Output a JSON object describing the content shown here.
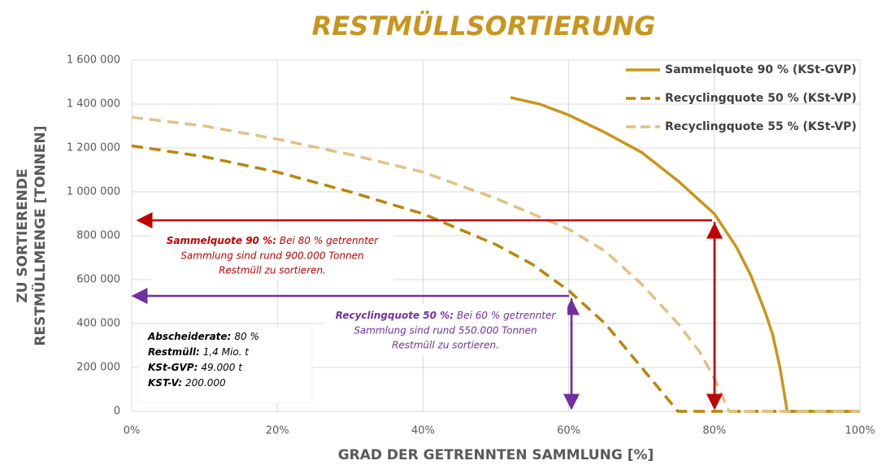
{
  "chart_data": {
    "type": "line",
    "title": "RESTMÜLLSORTIERUNG",
    "x_label": "GRAD DER GETRENNTEN SAMMLUNG [%]",
    "y_label": [
      "ZU SORTIERENDE",
      "RESTMÜLLMENGE [TONNEN]"
    ],
    "xlim": [
      0,
      100
    ],
    "ylim": [
      0,
      1600000
    ],
    "xticks": [
      {
        "value": 0,
        "label": "0%"
      },
      {
        "value": 20,
        "label": "20%"
      },
      {
        "value": 40,
        "label": "40%"
      },
      {
        "value": 60,
        "label": "60%"
      },
      {
        "value": 80,
        "label": "80%"
      },
      {
        "value": 100,
        "label": "100%"
      }
    ],
    "yticks": [
      0,
      {
        "value": 200000,
        "label": "200 000"
      },
      {
        "value": 400000,
        "label": "400 000"
      },
      {
        "value": 600000,
        "label": "600 000"
      },
      {
        "value": 800000,
        "label": "800 000"
      },
      {
        "value": 1000000,
        "label": "1 000 000"
      },
      {
        "value": 1200000,
        "label": "1 200 000"
      },
      {
        "value": 1400000,
        "label": "1 400 000"
      },
      {
        "value": 1600000,
        "label": "1 600 000"
      }
    ],
    "grid": true,
    "legend": "upper right",
    "series": [
      {
        "name": "Sammelquote 90 % (KSt-GVP)",
        "color": "#c9961a",
        "dash": "solid",
        "x": [
          52,
          56,
          60,
          65,
          70,
          75,
          80,
          83,
          85,
          87,
          88,
          89,
          90,
          95,
          100
        ],
        "values": [
          1430000,
          1400000,
          1350000,
          1270000,
          1180000,
          1050000,
          900000,
          750000,
          620000,
          450000,
          350000,
          200000,
          0,
          0,
          0
        ]
      },
      {
        "name": "Recyclingquote 50 % (KSt-VP)",
        "color": "#b8860b",
        "dash": "dashed",
        "x": [
          0,
          10,
          20,
          30,
          40,
          50,
          55,
          60,
          65,
          70,
          73,
          75,
          80,
          90,
          100
        ],
        "values": [
          1210000,
          1160000,
          1090000,
          1000000,
          900000,
          760000,
          670000,
          550000,
          400000,
          200000,
          80000,
          0,
          0,
          0,
          0
        ]
      },
      {
        "name": "Recyclingquote 55 % (KSt-VP)",
        "color": "#e0c185",
        "dash": "dashed",
        "x": [
          0,
          10,
          20,
          30,
          40,
          50,
          60,
          65,
          70,
          75,
          78,
          80,
          82,
          90,
          100
        ],
        "values": [
          1340000,
          1300000,
          1240000,
          1170000,
          1090000,
          970000,
          830000,
          730000,
          580000,
          400000,
          270000,
          150000,
          0,
          0,
          0
        ]
      }
    ],
    "annotations": [
      {
        "bold": "Sammelquote 90 %:",
        "lines": [
          "Bei 80 % getrennter",
          "Sammlung sind rund 900.000 Tonnen",
          "Restmüll zu sortieren."
        ]
      },
      {
        "bold": "Recyclingquote 50 %:",
        "lines": [
          "Bei 60 % getrennter",
          "Sammlung sind rund 550.000 Tonnen",
          "Restmüll zu sortieren."
        ]
      }
    ],
    "info": [
      {
        "key": "Abscheiderate:",
        "value": "80 %"
      },
      {
        "key": "Restmüll:",
        "value": "1,4 Mio. t"
      },
      {
        "key": "KSt-GVP:",
        "value": "49.000 t"
      },
      {
        "key": "KST-V:",
        "value": "200.000"
      }
    ]
  }
}
